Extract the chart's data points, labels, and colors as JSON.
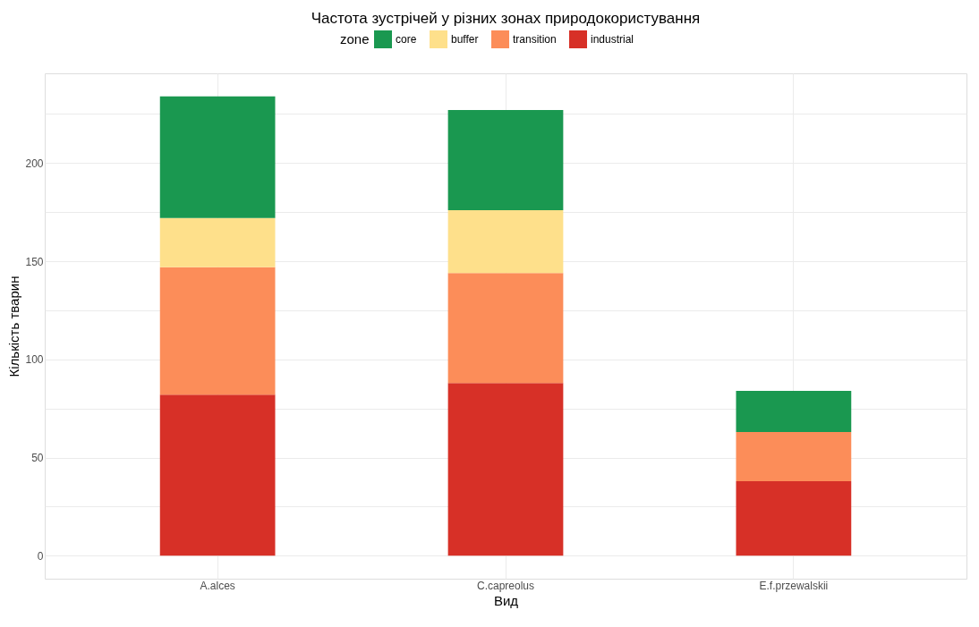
{
  "chart_data": {
    "type": "bar",
    "title": "Частота зустрічей у різних зонах природокористування",
    "xlabel": "Вид",
    "ylabel": "Кількість тварин",
    "legend_title": "zone",
    "categories": [
      "A.alces",
      "C.capreolus",
      "E.f.przewalskii"
    ],
    "stacked": true,
    "series": [
      {
        "name": "industrial",
        "color": "#d73027",
        "values": [
          82,
          88,
          38
        ]
      },
      {
        "name": "transition",
        "color": "#fc8d59",
        "values": [
          65,
          56,
          25
        ]
      },
      {
        "name": "buffer",
        "color": "#fee08b",
        "values": [
          25,
          32,
          0
        ]
      },
      {
        "name": "core",
        "color": "#1a9850",
        "values": [
          62,
          51,
          21
        ]
      }
    ],
    "ylim": [
      -11.7,
      245.7
    ],
    "yticks": [
      0,
      {
        "value": 25,
        "label": null
      },
      50,
      {
        "value": 75,
        "label": null
      },
      100,
      {
        "value": 125,
        "label": null
      },
      150,
      {
        "value": 175,
        "label": null
      },
      200,
      {
        "value": 225,
        "label": null
      }
    ],
    "grid": true,
    "legend": "top"
  }
}
